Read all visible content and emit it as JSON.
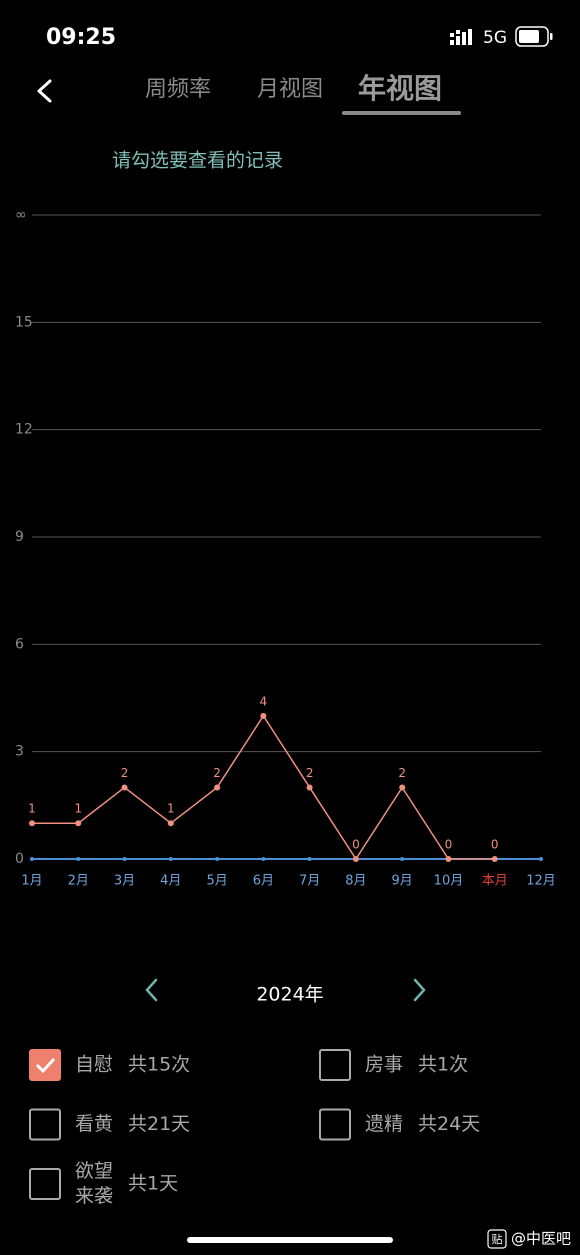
{
  "status_bar": {
    "time": "09:25",
    "network": "5G"
  },
  "tabs": {
    "items": [
      "周频率",
      "月视图",
      "年视图"
    ],
    "active": 2
  },
  "hint": "请勾选要查看的记录",
  "chart_data": {
    "type": "line",
    "categories": [
      "1月",
      "2月",
      "3月",
      "4月",
      "5月",
      "6月",
      "7月",
      "8月",
      "9月",
      "10月",
      "本月",
      "12月"
    ],
    "values": [
      1,
      1,
      2,
      1,
      2,
      4,
      2,
      0,
      2,
      0,
      0,
      null
    ],
    "color": "#f0907f",
    "baseline_color": "#4a90d9",
    "x_label_color": "#6fa3dc",
    "current_category": 10,
    "current_label_color": "#e0443c",
    "ylim": [
      0,
      18
    ],
    "yticks": [
      0,
      3,
      6,
      9,
      12,
      15,
      {
        "value": 18,
        "label": "∞"
      }
    ],
    "grid": true
  },
  "year_nav": {
    "label": "2024年"
  },
  "records": [
    {
      "label": [
        "自慰"
      ],
      "count": "共15次",
      "checked": true
    },
    {
      "label": [
        "房事"
      ],
      "count": "共1次",
      "checked": false
    },
    {
      "label": [
        "看黄"
      ],
      "count": "共21天",
      "checked": false
    },
    {
      "label": [
        "遗精"
      ],
      "count": "共24天",
      "checked": false
    },
    {
      "label": [
        "欲望",
        "来袭"
      ],
      "count": "共1天",
      "checked": false
    }
  ],
  "watermark": {
    "icon": "贴",
    "text": "@中医吧"
  }
}
